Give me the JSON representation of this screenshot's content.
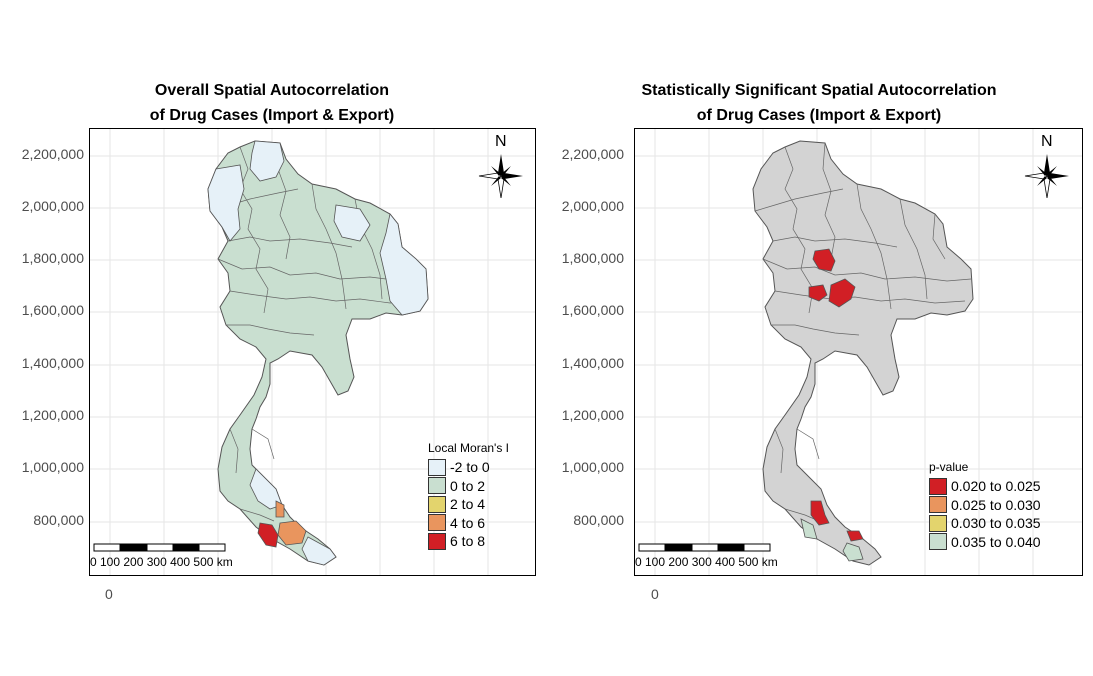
{
  "maps": [
    {
      "title_line1": "Overall Spatial Autocorrelation",
      "title_line2": "of Drug Cases (Import & Export)",
      "y_ticks": [
        "2,200,000",
        "2,000,000",
        "1,800,000",
        "1,600,000",
        "1,400,000",
        "1,200,000",
        "1,000,000",
        "800,000"
      ],
      "x_tick": "0",
      "north_label": "N",
      "legend_title": "Local Moran's I",
      "legend_items": [
        {
          "label": "-2 to 0",
          "color": "#e6f1f8"
        },
        {
          "label": "0 to 2",
          "color": "#c9dfd0"
        },
        {
          "label": "2 to 4",
          "color": "#e3d46d"
        },
        {
          "label": "4 to 6",
          "color": "#e9955e"
        },
        {
          "label": "6 to 8",
          "color": "#d11f25"
        }
      ],
      "scale_bar_labels": "0 100 200 300 400 500 km"
    },
    {
      "title_line1": "Statistically Significant Spatial Autocorrelation",
      "title_line2": "of Drug Cases (Import & Export)",
      "y_ticks": [
        "2,200,000",
        "2,000,000",
        "1,800,000",
        "1,600,000",
        "1,400,000",
        "1,200,000",
        "1,000,000",
        "800,000"
      ],
      "x_tick": "0",
      "north_label": "N",
      "legend_title": "p-value",
      "legend_items": [
        {
          "label": "0.020 to 0.025",
          "color": "#d11f25"
        },
        {
          "label": "0.025 to 0.030",
          "color": "#e9955e"
        },
        {
          "label": "0.030 to 0.035",
          "color": "#e3d46d"
        },
        {
          "label": "0.035 to 0.040",
          "color": "#c9dfd0"
        }
      ],
      "scale_bar_labels": "0 100 200 300 400 500 km"
    }
  ],
  "colors": {
    "default_fill_left": "#c9dfd0",
    "default_fill_right": "#d3d3d3",
    "border": "#555555",
    "grid": "#e6e6e6",
    "highlight_red": "#d11f25",
    "highlight_orange": "#e9955e",
    "highlight_blue": "#e6f1f8"
  }
}
